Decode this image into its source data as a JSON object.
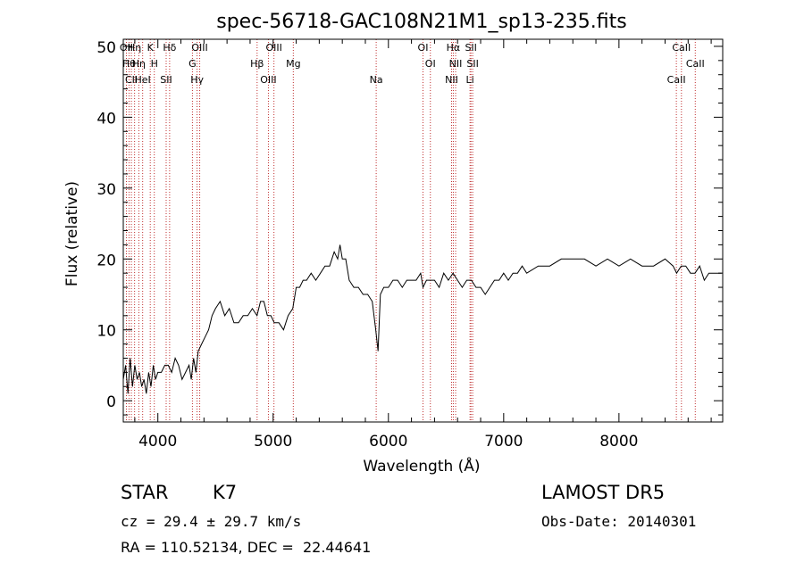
{
  "chart_data": {
    "type": "line",
    "title": "spec-56718-GAC108N21M1_sp13-235.fits",
    "xlabel": "Wavelength (Å)",
    "ylabel": "Flux (relative)",
    "xlim": [
      3700,
      8900
    ],
    "ylim": [
      -3,
      51
    ],
    "xticks": [
      4000,
      5000,
      6000,
      7000,
      8000
    ],
    "yticks": [
      0,
      10,
      20,
      30,
      40,
      50
    ],
    "grid": false,
    "series": [
      {
        "x": [
          3700,
          3720,
          3740,
          3760,
          3780,
          3800,
          3820,
          3840,
          3860,
          3880,
          3900,
          3920,
          3940,
          3960,
          3980,
          4000,
          4030,
          4060,
          4090,
          4120,
          4150,
          4180,
          4210,
          4240,
          4270,
          4290,
          4310,
          4330,
          4350,
          4380,
          4410,
          4440,
          4470,
          4500,
          4540,
          4580,
          4620,
          4660,
          4700,
          4740,
          4780,
          4820,
          4860,
          4890,
          4920,
          4950,
          4980,
          5010,
          5050,
          5090,
          5130,
          5170,
          5200,
          5230,
          5260,
          5290,
          5330,
          5370,
          5410,
          5450,
          5490,
          5530,
          5560,
          5580,
          5600,
          5630,
          5660,
          5700,
          5740,
          5780,
          5820,
          5860,
          5890,
          5910,
          5930,
          5960,
          6000,
          6040,
          6080,
          6120,
          6160,
          6200,
          6240,
          6280,
          6300,
          6330,
          6360,
          6400,
          6440,
          6480,
          6520,
          6560,
          6600,
          6640,
          6680,
          6720,
          6760,
          6800,
          6840,
          6880,
          6920,
          6960,
          7000,
          7040,
          7080,
          7120,
          7160,
          7200,
          7300,
          7400,
          7500,
          7600,
          7700,
          7800,
          7900,
          8000,
          8100,
          8200,
          8300,
          8400,
          8470,
          8500,
          8540,
          8580,
          8620,
          8660,
          8700,
          8740,
          8780,
          8820,
          8860,
          8890
        ],
        "y": [
          3,
          5,
          1,
          6,
          2,
          5,
          3,
          4,
          2,
          3,
          1,
          4,
          2,
          5,
          3,
          4,
          4,
          5,
          5,
          4,
          6,
          5,
          3,
          4,
          5,
          3,
          6,
          4,
          7,
          8,
          9,
          10,
          12,
          13,
          14,
          12,
          13,
          11,
          11,
          12,
          12,
          13,
          12,
          14,
          14,
          12,
          12,
          11,
          11,
          10,
          12,
          13,
          16,
          16,
          17,
          17,
          18,
          17,
          18,
          19,
          19,
          21,
          20,
          22,
          20,
          20,
          17,
          16,
          16,
          15,
          15,
          14,
          10,
          7,
          15,
          16,
          16,
          17,
          17,
          16,
          17,
          17,
          17,
          18,
          16,
          17,
          17,
          17,
          16,
          18,
          17,
          18,
          17,
          16,
          17,
          17,
          16,
          16,
          15,
          16,
          17,
          17,
          18,
          17,
          18,
          18,
          19,
          18,
          19,
          19,
          20,
          20,
          20,
          19,
          20,
          19,
          20,
          19,
          19,
          20,
          19,
          18,
          19,
          19,
          18,
          18,
          19,
          17,
          18,
          18,
          18,
          18
        ]
      }
    ],
    "lines": [
      {
        "x": 3727,
        "labels": [
          "OII"
        ]
      },
      {
        "x": 3750,
        "labels": [
          "Hθ"
        ]
      },
      {
        "x": 3770,
        "labels": [
          "CII"
        ]
      },
      {
        "x": 3798,
        "labels": [
          "Hη"
        ]
      },
      {
        "x": 3835,
        "labels": [
          "Hη"
        ]
      },
      {
        "x": 3868,
        "labels": [
          "HeI"
        ]
      },
      {
        "x": 3934,
        "labels": [
          "K"
        ]
      },
      {
        "x": 3969,
        "labels": [
          "H"
        ]
      },
      {
        "x": 4072,
        "labels": [
          "SII"
        ]
      },
      {
        "x": 4102,
        "labels": [
          "Hδ"
        ]
      },
      {
        "x": 4300,
        "labels": [
          "G"
        ]
      },
      {
        "x": 4340,
        "labels": [
          "Hγ"
        ]
      },
      {
        "x": 4363,
        "labels": [
          "OIII"
        ]
      },
      {
        "x": 4861,
        "labels": [
          "Hβ"
        ]
      },
      {
        "x": 4959,
        "labels": [
          "OIII"
        ]
      },
      {
        "x": 5007,
        "labels": [
          "OIII"
        ]
      },
      {
        "x": 5175,
        "labels": [
          "Mg"
        ]
      },
      {
        "x": 5894,
        "labels": [
          "Na"
        ]
      },
      {
        "x": 6300,
        "labels": [
          "OI"
        ]
      },
      {
        "x": 6364,
        "labels": [
          "OI"
        ]
      },
      {
        "x": 6548,
        "labels": [
          "NII"
        ]
      },
      {
        "x": 6563,
        "labels": [
          "Hα"
        ]
      },
      {
        "x": 6583,
        "labels": [
          "NII"
        ]
      },
      {
        "x": 6708,
        "labels": [
          "Li"
        ]
      },
      {
        "x": 6716,
        "labels": [
          "SII"
        ]
      },
      {
        "x": 6731,
        "labels": [
          "SII"
        ]
      },
      {
        "x": 8498,
        "labels": [
          "CaII"
        ]
      },
      {
        "x": 8542,
        "labels": [
          "CaII"
        ]
      },
      {
        "x": 8662,
        "labels": [
          "CaII"
        ]
      }
    ]
  },
  "info": {
    "object_class": "STAR",
    "subclass": "K7",
    "survey": "LAMOST DR5",
    "redshift": "cz = 29.4 ± 29.7 km/s",
    "obs_date": "Obs-Date: 20140301",
    "coords": "RA = 110.52134, DEC =  22.44641"
  }
}
